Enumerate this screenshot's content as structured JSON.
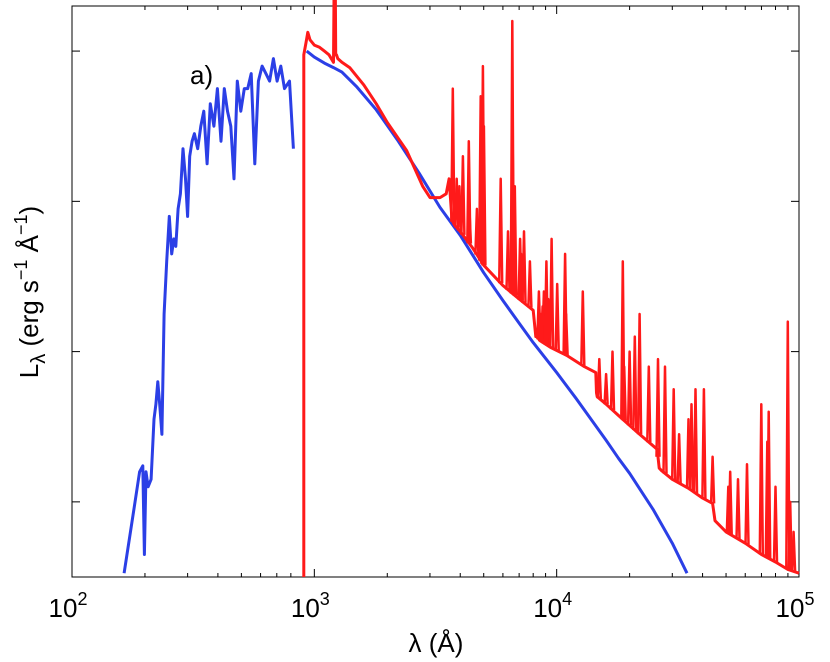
{
  "chart_data": {
    "type": "line",
    "panel_label": "a)",
    "xlabel": "λ (Å)",
    "ylabel": {
      "base": "L",
      "subscript": "λ",
      "units_open": " (erg s",
      "exp1": "−1",
      "mid": " Å",
      "exp2": "−1",
      "close": ")"
    },
    "xscale": "log",
    "xlim": [
      100,
      100000
    ],
    "xticks": [
      {
        "base": "10",
        "exp": "2",
        "value": 100
      },
      {
        "base": "10",
        "exp": "3",
        "value": 1000
      },
      {
        "base": "10",
        "exp": "4",
        "value": 10000
      },
      {
        "base": "10",
        "exp": "5",
        "value": 100000
      }
    ],
    "ylim": [
      0,
      7.6
    ],
    "yscale": "log (relative, unlabelled)",
    "yticks": [
      1,
      3,
      5,
      7
    ],
    "grid": false,
    "legend": "none",
    "colors": {
      "blue": "#2b3fe6",
      "red": "#ff1a1a"
    },
    "series": [
      {
        "color": "#2b3fe6",
        "x": [
          164,
          180,
          190,
          196,
          199,
          202,
          206,
          212,
          218,
          222,
          226,
          230,
          235,
          240,
          246,
          252,
          258,
          263,
          268,
          274,
          280,
          287,
          294,
          300,
          306,
          313,
          320,
          330,
          340,
          350,
          361,
          372,
          385,
          398,
          412,
          425,
          438,
          452,
          466,
          481,
          497,
          514,
          531,
          549,
          568,
          588,
          609,
          631,
          654,
          678,
          702,
          727,
          753,
          790,
          820
        ],
        "y": [
          0.05,
          0.9,
          1.4,
          1.48,
          0.3,
          1.4,
          1.2,
          1.3,
          2.1,
          2.3,
          2.6,
          2.3,
          1.9,
          3.5,
          4.2,
          4.8,
          4.3,
          4.5,
          4.4,
          4.9,
          5.1,
          5.7,
          5.3,
          4.8,
          5.6,
          5.8,
          5.9,
          5.7,
          6.0,
          6.2,
          5.5,
          6.3,
          6.0,
          6.5,
          5.8,
          6.5,
          6.2,
          6.0,
          5.3,
          6.6,
          6.2,
          6.5,
          6.5,
          6.7,
          5.5,
          6.6,
          6.8,
          6.7,
          6.6,
          6.9,
          6.6,
          6.8,
          6.5,
          6.6,
          5.7
        ]
      },
      {
        "color": "#2b3fe6",
        "x": [
          930,
          1000,
          1100,
          1200,
          1300,
          1500,
          1800,
          2200,
          2700,
          3300,
          4000,
          5000,
          6000,
          7000,
          8000,
          10000,
          12000,
          14000,
          16000,
          18000,
          20000,
          25000,
          30000,
          34500
        ],
        "y": [
          7.0,
          6.92,
          6.84,
          6.78,
          6.72,
          6.52,
          6.22,
          5.82,
          5.38,
          4.92,
          4.55,
          4.05,
          3.68,
          3.38,
          3.12,
          2.72,
          2.38,
          2.08,
          1.82,
          1.58,
          1.38,
          0.9,
          0.45,
          0.05
        ]
      },
      {
        "color": "#ff1a1a",
        "x": [
          905,
          905,
          925,
          940,
          960,
          1000,
          1050,
          1100,
          1150,
          1200,
          1215,
          1225,
          1235,
          1250,
          1300,
          1400,
          1600,
          1800,
          2000,
          2400,
          2800,
          3000,
          3300,
          3500,
          3600,
          3700,
          3800,
          4000,
          4500,
          5000,
          6000,
          7000,
          8000,
          8200,
          8300,
          8500,
          9500,
          11000,
          13000,
          14500,
          14600,
          14700,
          16000,
          18000,
          22000,
          26000,
          26500,
          27000,
          30000,
          35000,
          40000,
          44000,
          45000,
          50000,
          60000,
          70000,
          80000,
          90000,
          100000
        ],
        "y": [
          0.0,
          6.95,
          7.12,
          7.25,
          7.15,
          7.08,
          7.05,
          7.0,
          6.95,
          6.85,
          9.05,
          6.95,
          6.95,
          6.9,
          6.85,
          6.78,
          6.55,
          6.3,
          6.05,
          5.68,
          5.2,
          5.05,
          5.05,
          5.1,
          5.3,
          4.75,
          4.68,
          4.6,
          4.38,
          4.15,
          3.88,
          3.7,
          3.55,
          3.2,
          3.2,
          3.15,
          3.05,
          2.95,
          2.8,
          2.72,
          2.45,
          2.4,
          2.3,
          2.15,
          1.9,
          1.7,
          1.45,
          1.42,
          1.3,
          1.18,
          1.05,
          0.98,
          0.75,
          0.6,
          0.45,
          0.3,
          0.2,
          0.1,
          0.05
        ]
      }
    ],
    "emission_lines": {
      "color": "#ff1a1a",
      "lines": [
        {
          "x": 3727,
          "y": 6.5
        },
        {
          "x": 3869,
          "y": 5.3
        },
        {
          "x": 3970,
          "y": 5.2
        },
        {
          "x": 4101,
          "y": 5.6
        },
        {
          "x": 4340,
          "y": 5.8
        },
        {
          "x": 4363,
          "y": 4.9
        },
        {
          "x": 4686,
          "y": 4.9
        },
        {
          "x": 4861,
          "y": 6.4
        },
        {
          "x": 4959,
          "y": 6.8
        },
        {
          "x": 5007,
          "y": 6.0
        },
        {
          "x": 5876,
          "y": 5.3
        },
        {
          "x": 6300,
          "y": 4.6
        },
        {
          "x": 6563,
          "y": 7.4
        },
        {
          "x": 6584,
          "y": 5.7
        },
        {
          "x": 6717,
          "y": 5.2
        },
        {
          "x": 7065,
          "y": 4.5
        },
        {
          "x": 7136,
          "y": 4.3
        },
        {
          "x": 7330,
          "y": 4.6
        },
        {
          "x": 7751,
          "y": 4.2
        },
        {
          "x": 8446,
          "y": 3.8
        },
        {
          "x": 8600,
          "y": 3.5
        },
        {
          "x": 8750,
          "y": 3.6
        },
        {
          "x": 8860,
          "y": 3.8
        },
        {
          "x": 9015,
          "y": 3.6
        },
        {
          "x": 9069,
          "y": 4.2
        },
        {
          "x": 9229,
          "y": 3.7
        },
        {
          "x": 9531,
          "y": 4.5
        },
        {
          "x": 10049,
          "y": 3.9
        },
        {
          "x": 10830,
          "y": 4.3
        },
        {
          "x": 10941,
          "y": 3.5
        },
        {
          "x": 12818,
          "y": 3.8
        },
        {
          "x": 15000,
          "y": 2.9
        },
        {
          "x": 16000,
          "y": 2.7
        },
        {
          "x": 17000,
          "y": 3.0
        },
        {
          "x": 18751,
          "y": 4.2
        },
        {
          "x": 19000,
          "y": 2.8
        },
        {
          "x": 20000,
          "y": 3.0
        },
        {
          "x": 21000,
          "y": 3.2
        },
        {
          "x": 22000,
          "y": 3.5
        },
        {
          "x": 24000,
          "y": 2.8
        },
        {
          "x": 26200,
          "y": 2.9
        },
        {
          "x": 28000,
          "y": 2.8
        },
        {
          "x": 30400,
          "y": 2.5
        },
        {
          "x": 32000,
          "y": 1.9
        },
        {
          "x": 35000,
          "y": 2.1
        },
        {
          "x": 36000,
          "y": 2.3
        },
        {
          "x": 37400,
          "y": 2.5
        },
        {
          "x": 40500,
          "y": 2.5
        },
        {
          "x": 44000,
          "y": 1.6
        },
        {
          "x": 51100,
          "y": 1.2
        },
        {
          "x": 52000,
          "y": 1.4
        },
        {
          "x": 56000,
          "y": 1.3
        },
        {
          "x": 61000,
          "y": 1.5
        },
        {
          "x": 69900,
          "y": 2.3
        },
        {
          "x": 74000,
          "y": 1.8
        },
        {
          "x": 75000,
          "y": 2.2
        },
        {
          "x": 80000,
          "y": 1.2
        },
        {
          "x": 89900,
          "y": 3.4
        },
        {
          "x": 92000,
          "y": 1.0
        },
        {
          "x": 95000,
          "y": 0.6
        }
      ]
    }
  }
}
